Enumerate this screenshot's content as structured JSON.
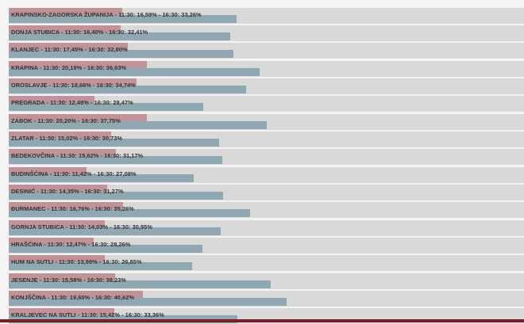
{
  "chart_data": {
    "type": "bar",
    "orientation": "horizontal",
    "title": "",
    "xlabel": "",
    "ylabel": "",
    "xlim": [
      0,
      75
    ],
    "series": [
      {
        "name": "11:30",
        "color": "#bf9397"
      },
      {
        "name": "16:30",
        "color": "#8fa8b1"
      }
    ],
    "rows": [
      {
        "label": "KRAPINSKO-ZAGORSKA ŽUPANIJA - 11:30: 16,59% - 16:30: 33,26%",
        "v1130": 16.59,
        "v1630": 33.26
      },
      {
        "label": "DONJA STUBICA - 11:30: 16,40% - 16:30: 32,41%",
        "v1130": 16.4,
        "v1630": 32.41
      },
      {
        "label": "KLANJEC - 11:30: 17,45% - 16:30: 32,80%",
        "v1130": 17.45,
        "v1630": 32.8
      },
      {
        "label": "KRAPINA - 11:30: 20,19% - 16:30: 36,63%",
        "v1130": 20.19,
        "v1630": 36.63
      },
      {
        "label": "OROSLAVJE - 11:30: 18,66% - 16:30: 34,74%",
        "v1130": 18.66,
        "v1630": 34.74
      },
      {
        "label": "PREGRADA - 11:30: 12,48% - 16:30: 28,47%",
        "v1130": 12.48,
        "v1630": 28.47
      },
      {
        "label": "ZABOK - 11:30: 20,20% - 16:30: 37,75%",
        "v1130": 20.2,
        "v1630": 37.75
      },
      {
        "label": "ZLATAR - 11:30: 15,02% - 16:30: 30,73%",
        "v1130": 15.02,
        "v1630": 30.73
      },
      {
        "label": "BEDEKOVČINA - 11:30: 15,62% - 16:30: 31,17%",
        "v1130": 15.62,
        "v1630": 31.17
      },
      {
        "label": "BUDINŠĆINA - 11:30: 11,42% - 16:30: 27,08%",
        "v1130": 11.42,
        "v1630": 27.08
      },
      {
        "label": "DESINIĆ - 11:30: 14,35% - 16:30: 31,27%",
        "v1130": 14.35,
        "v1630": 31.27
      },
      {
        "label": "ĐURMANEC - 11:30: 16,76% - 16:30: 35,26%",
        "v1130": 16.76,
        "v1630": 35.26
      },
      {
        "label": "GORNJA STUBICA - 11:30: 14,03% - 16:30: 30,95%",
        "v1130": 14.03,
        "v1630": 30.95
      },
      {
        "label": "HRAŠĆINA - 11:30: 12,47% - 16:30: 28,26%",
        "v1130": 12.47,
        "v1630": 28.26
      },
      {
        "label": "HUM NA SUTLI - 11:30: 13,98% - 16:30: 26,85%",
        "v1130": 13.98,
        "v1630": 26.85
      },
      {
        "label": "JESENJE - 11:30: 15,58% - 16:30: 38,23%",
        "v1130": 15.58,
        "v1630": 38.23
      },
      {
        "label": "KONJŠČINA - 11:30: 19,60% - 16:30: 40,62%",
        "v1130": 19.6,
        "v1630": 40.62
      },
      {
        "label": "KRALJEVEC NA SUTLI - 11:30: 15,42% - 16:30: 33,36%",
        "v1130": 15.42,
        "v1630": 33.36
      }
    ]
  }
}
